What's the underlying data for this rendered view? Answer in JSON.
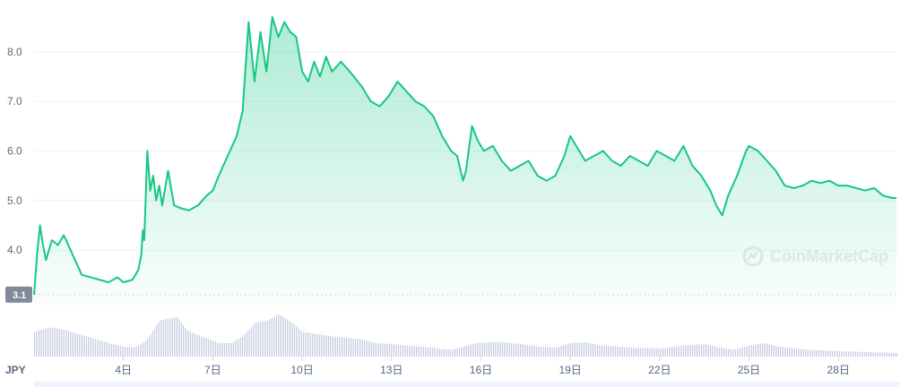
{
  "currency": "JPY",
  "watermark": "CoinMarketCap",
  "colors": {
    "line": "#16c784",
    "fill_top": "#16c784",
    "volume": "#c5cbe0",
    "badge": "#808a9d"
  },
  "chart_data": {
    "type": "area",
    "ylim": [
      2.9,
      8.9
    ],
    "y_ticks": [
      4.0,
      5.0,
      6.0,
      7.0,
      8.0
    ],
    "y_tick_labels": [
      "4.0",
      "5.0",
      "6.0",
      "7.0",
      "8.0"
    ],
    "x_range": [
      1,
      29.95
    ],
    "x_ticks": [
      4,
      7,
      10,
      13,
      16,
      19,
      22,
      25,
      28
    ],
    "x_tick_labels": [
      "4日",
      "7日",
      "10日",
      "13日",
      "16日",
      "19日",
      "22日",
      "25日",
      "28日"
    ],
    "baseline": {
      "value": 3.1,
      "label": "3.1"
    },
    "grid": true,
    "series": [
      {
        "x": [
          1.0,
          1.1,
          1.2,
          1.3,
          1.4,
          1.6,
          1.8,
          2.0,
          2.3,
          2.6,
          2.9,
          3.2,
          3.5,
          3.8,
          4.0,
          4.3,
          4.5,
          4.6,
          4.65,
          4.7,
          4.8,
          4.9,
          5.0,
          5.1,
          5.2,
          5.3,
          5.5,
          5.7,
          5.9,
          6.2,
          6.5,
          6.8,
          7.0,
          7.2,
          7.5,
          7.8,
          8.0,
          8.2,
          8.4,
          8.6,
          8.8,
          9.0,
          9.2,
          9.4,
          9.6,
          9.8,
          10.0,
          10.2,
          10.4,
          10.6,
          10.8,
          11.0,
          11.3,
          11.6,
          12.0,
          12.3,
          12.6,
          12.9,
          13.2,
          13.5,
          13.8,
          14.1,
          14.4,
          14.7,
          15.0,
          15.2,
          15.4,
          15.5,
          15.7,
          15.9,
          16.1,
          16.4,
          16.7,
          17.0,
          17.3,
          17.6,
          17.9,
          18.2,
          18.5,
          18.8,
          19.0,
          19.2,
          19.5,
          19.8,
          20.1,
          20.4,
          20.7,
          21.0,
          21.3,
          21.6,
          21.9,
          22.2,
          22.5,
          22.8,
          23.1,
          23.4,
          23.7,
          23.9,
          24.1,
          24.3,
          24.6,
          24.9,
          25.0,
          25.3,
          25.6,
          25.9,
          26.2,
          26.5,
          26.8,
          27.1,
          27.4,
          27.7,
          28.0,
          28.3,
          28.6,
          28.9,
          29.2,
          29.5,
          29.8,
          29.95
        ],
        "values": [
          3.1,
          3.9,
          4.5,
          4.1,
          3.8,
          4.2,
          4.1,
          4.3,
          3.9,
          3.5,
          3.45,
          3.4,
          3.35,
          3.45,
          3.35,
          3.4,
          3.6,
          3.9,
          4.4,
          4.2,
          6.0,
          5.2,
          5.5,
          5.0,
          5.3,
          4.9,
          5.6,
          4.9,
          4.85,
          4.8,
          4.9,
          5.1,
          5.2,
          5.5,
          5.9,
          6.3,
          6.8,
          8.6,
          7.4,
          8.4,
          7.6,
          8.7,
          8.3,
          8.6,
          8.4,
          8.3,
          7.6,
          7.4,
          7.8,
          7.5,
          7.9,
          7.6,
          7.8,
          7.6,
          7.3,
          7.0,
          6.9,
          7.1,
          7.4,
          7.2,
          7.0,
          6.9,
          6.7,
          6.3,
          6.0,
          5.9,
          5.4,
          5.6,
          6.5,
          6.2,
          6.0,
          6.1,
          5.8,
          5.6,
          5.7,
          5.8,
          5.5,
          5.4,
          5.5,
          5.9,
          6.3,
          6.1,
          5.8,
          5.9,
          6.0,
          5.8,
          5.7,
          5.9,
          5.8,
          5.7,
          6.0,
          5.9,
          5.8,
          6.1,
          5.7,
          5.5,
          5.2,
          4.9,
          4.7,
          5.1,
          5.5,
          6.0,
          6.1,
          6.0,
          5.8,
          5.6,
          5.3,
          5.25,
          5.3,
          5.4,
          5.35,
          5.4,
          5.3,
          5.3,
          5.25,
          5.2,
          5.25,
          5.1,
          5.05,
          5.05
        ]
      }
    ],
    "volume": {
      "x": [
        1.0,
        1.5,
        2.0,
        2.5,
        3.0,
        3.5,
        4.0,
        4.3,
        4.6,
        4.8,
        5.0,
        5.2,
        5.5,
        5.8,
        6.1,
        6.4,
        6.8,
        7.2,
        7.6,
        8.0,
        8.4,
        8.8,
        9.2,
        9.6,
        10.0,
        10.5,
        11.0,
        11.5,
        12.0,
        12.5,
        13.0,
        14.0,
        15.0,
        15.8,
        16.5,
        17.3,
        18.0,
        18.5,
        19.0,
        19.5,
        20.0,
        21.0,
        22.0,
        22.8,
        23.5,
        24.0,
        24.5,
        25.0,
        25.5,
        26.0,
        27.0,
        28.0,
        29.0,
        29.95
      ],
      "values": [
        0.55,
        0.65,
        0.6,
        0.5,
        0.4,
        0.3,
        0.22,
        0.2,
        0.28,
        0.4,
        0.6,
        0.8,
        0.85,
        0.88,
        0.6,
        0.5,
        0.4,
        0.3,
        0.3,
        0.45,
        0.75,
        0.8,
        0.95,
        0.78,
        0.55,
        0.5,
        0.45,
        0.42,
        0.38,
        0.3,
        0.28,
        0.22,
        0.15,
        0.3,
        0.33,
        0.28,
        0.22,
        0.2,
        0.3,
        0.32,
        0.25,
        0.2,
        0.18,
        0.25,
        0.28,
        0.2,
        0.15,
        0.25,
        0.3,
        0.22,
        0.15,
        0.12,
        0.1,
        0.08
      ]
    }
  }
}
